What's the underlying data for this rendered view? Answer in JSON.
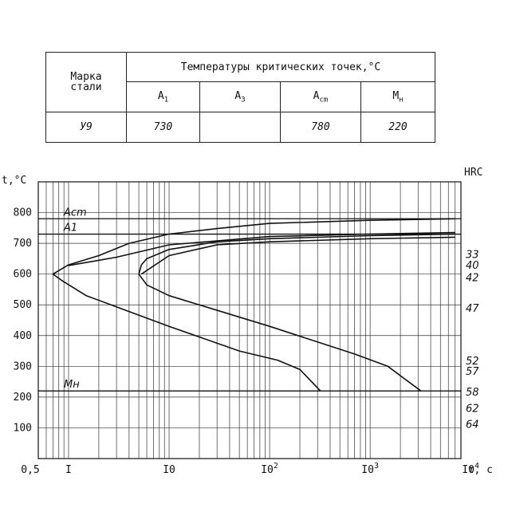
{
  "table": {
    "col_grade": "Марка\nстали",
    "col_temps": "Температуры критических точек,",
    "col_temps_unit": "°С",
    "sub_headers": [
      {
        "main": "A",
        "sub": "1"
      },
      {
        "main": "A",
        "sub": "3"
      },
      {
        "main": "A",
        "sub": "cm"
      },
      {
        "main": "M",
        "sub": "н"
      }
    ],
    "row": {
      "grade": "У9",
      "a1": "730",
      "a3": "",
      "acm": "780",
      "mn": "220"
    }
  },
  "chart_data": {
    "type": "line",
    "ylabel": "t,°C",
    "y2label": "HRC",
    "xlabel": "τ, c",
    "x_scale": "log",
    "xlim": [
      0.5,
      8000
    ],
    "ylim": [
      0,
      900
    ],
    "y_ticks": [
      "800",
      "700",
      "600",
      "500",
      "400",
      "300",
      "200",
      "100"
    ],
    "y_tick_values": [
      800,
      700,
      600,
      500,
      400,
      300,
      200,
      100
    ],
    "x_ticks": [
      {
        "label": "0,5",
        "value": 0.5
      },
      {
        "label": "I",
        "value": 1
      },
      {
        "label": "I0",
        "value": 10
      },
      {
        "label": "I0",
        "sup": "2",
        "value": 100
      },
      {
        "label": "I0",
        "sup": "3",
        "value": 1000
      },
      {
        "label": "I0",
        "sup": "4",
        "value": 10000
      }
    ],
    "reference_lines": [
      {
        "label": "Acm",
        "y": 780
      },
      {
        "label": "A1",
        "y": 730
      },
      {
        "label": "Mн",
        "y": 220
      }
    ],
    "hrc_labels": [
      {
        "label": "33",
        "y": 663
      },
      {
        "label": "40",
        "y": 628
      },
      {
        "label": "42",
        "y": 587
      },
      {
        "label": "47",
        "y": 487
      },
      {
        "label": "52",
        "y": 317
      },
      {
        "label": "57",
        "y": 283
      },
      {
        "label": "58",
        "y": 215
      },
      {
        "label": "62",
        "y": 162
      },
      {
        "label": "64",
        "y": 110
      }
    ],
    "series": [
      {
        "values": [
          [
            7000,
            780
          ],
          [
            1000,
            775
          ],
          [
            100,
            765
          ],
          [
            30,
            748
          ],
          [
            10,
            730
          ],
          [
            4,
            700
          ],
          [
            2,
            660
          ],
          [
            1,
            630
          ],
          [
            0.7,
            600
          ],
          [
            0.85,
            580
          ],
          [
            1.5,
            530
          ],
          [
            10,
            430
          ],
          [
            50,
            350
          ],
          [
            120,
            320
          ],
          [
            200,
            290
          ],
          [
            320,
            220
          ]
        ]
      },
      {
        "values": [
          [
            7000,
            730
          ],
          [
            1000,
            725
          ],
          [
            100,
            715
          ],
          [
            30,
            705
          ],
          [
            10,
            680
          ],
          [
            6,
            650
          ],
          [
            5.3,
            630
          ],
          [
            5,
            600
          ],
          [
            6,
            565
          ],
          [
            10,
            530
          ],
          [
            100,
            430
          ],
          [
            700,
            340
          ],
          [
            1500,
            300
          ],
          [
            3200,
            220
          ]
        ]
      },
      {
        "values": [
          [
            7000,
            720
          ],
          [
            1000,
            715
          ],
          [
            100,
            705
          ],
          [
            30,
            695
          ],
          [
            10,
            660
          ],
          [
            5.3,
            600
          ]
        ]
      },
      {
        "values": [
          [
            7000,
            735
          ],
          [
            1000,
            730
          ],
          [
            100,
            722
          ],
          [
            10,
            695
          ],
          [
            3,
            655
          ],
          [
            1,
            628
          ]
        ]
      }
    ]
  }
}
